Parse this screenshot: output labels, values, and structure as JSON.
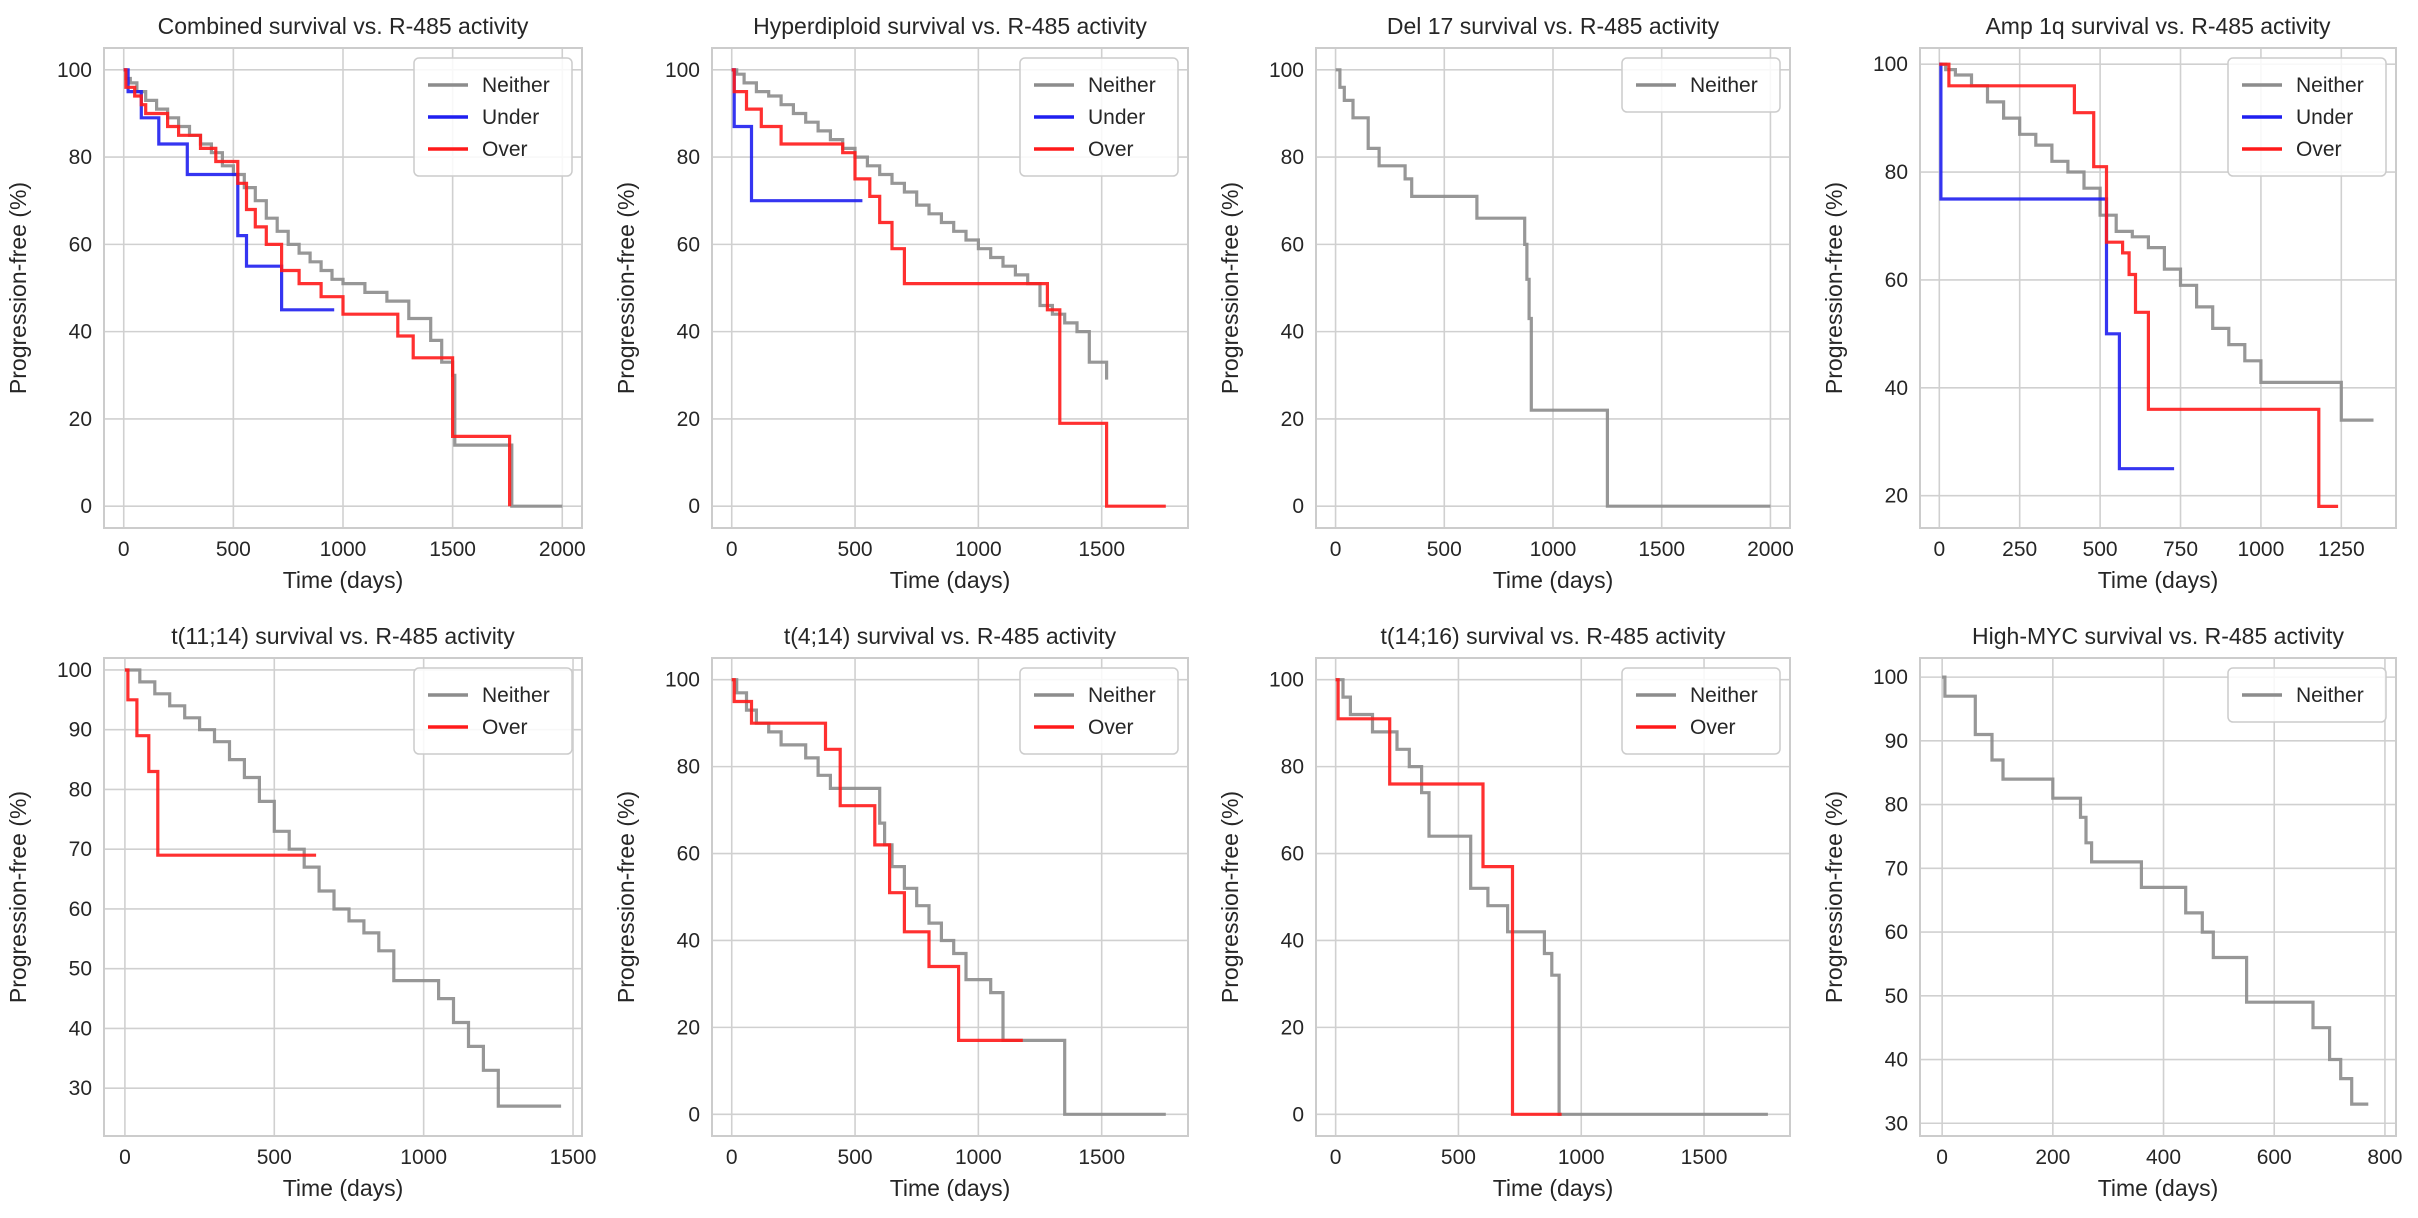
{
  "colors": {
    "Neither": "#8c8c8c",
    "Under": "#1f1ff0",
    "Over": "#ff1a1a",
    "grid": "#d0d0d0",
    "frame": "#cccccc"
  },
  "chart_data": [
    {
      "type": "line",
      "title": "Combined survival vs. R-485 activity",
      "xlabel": "Time (days)",
      "ylabel": "Progression-free (%)",
      "xlim": [
        -90,
        2090
      ],
      "ylim": [
        -5,
        105
      ],
      "xticks": [
        0,
        500,
        1000,
        1500,
        2000
      ],
      "yticks": [
        0,
        20,
        40,
        60,
        80,
        100
      ],
      "grid": true,
      "legend_placement": "top-right",
      "series": [
        {
          "name": "Neither",
          "x": [
            0,
            10,
            30,
            60,
            100,
            150,
            200,
            250,
            300,
            350,
            400,
            450,
            500,
            550,
            600,
            650,
            700,
            750,
            800,
            850,
            900,
            950,
            1000,
            1100,
            1200,
            1300,
            1400,
            1450,
            1500,
            1510,
            1770,
            2000
          ],
          "y": [
            100,
            98,
            97,
            95,
            93,
            91,
            89,
            87,
            85,
            83,
            81,
            78,
            76,
            73,
            70,
            66,
            63,
            60,
            58,
            56,
            54,
            52,
            51,
            49,
            47,
            43,
            38,
            33,
            30,
            14,
            0,
            0
          ]
        },
        {
          "name": "Under",
          "x": [
            0,
            20,
            80,
            160,
            290,
            520,
            560,
            720,
            960
          ],
          "y": [
            100,
            95,
            89,
            83,
            76,
            62,
            55,
            45,
            45
          ]
        },
        {
          "name": "Over",
          "x": [
            0,
            10,
            50,
            80,
            100,
            200,
            250,
            350,
            420,
            520,
            560,
            600,
            650,
            720,
            800,
            900,
            1000,
            1200,
            1250,
            1320,
            1500,
            1760
          ],
          "y": [
            100,
            96,
            94,
            92,
            90,
            87,
            85,
            82,
            79,
            74,
            68,
            64,
            60,
            54,
            51,
            48,
            44,
            44,
            39,
            34,
            16,
            0
          ]
        }
      ]
    },
    {
      "type": "line",
      "title": "Hyperdiploid survival vs. R-485 activity",
      "xlabel": "Time (days)",
      "ylabel": "Progression-free (%)",
      "xlim": [
        -80,
        1850
      ],
      "ylim": [
        -5,
        105
      ],
      "xticks": [
        0,
        500,
        1000,
        1500
      ],
      "yticks": [
        0,
        20,
        40,
        60,
        80,
        100
      ],
      "grid": true,
      "legend_placement": "top-right",
      "series": [
        {
          "name": "Neither",
          "x": [
            0,
            20,
            50,
            100,
            150,
            200,
            250,
            300,
            350,
            400,
            450,
            500,
            550,
            600,
            650,
            700,
            750,
            800,
            850,
            900,
            950,
            1000,
            1050,
            1100,
            1150,
            1200,
            1250,
            1300,
            1350,
            1400,
            1450,
            1520
          ],
          "y": [
            100,
            99,
            97,
            95,
            94,
            92,
            90,
            88,
            86,
            84,
            82,
            80,
            78,
            76,
            74,
            72,
            69,
            67,
            65,
            63,
            61,
            59,
            57,
            55,
            53,
            51,
            46,
            44,
            42,
            40,
            33,
            29
          ]
        },
        {
          "name": "Under",
          "x": [
            0,
            10,
            80,
            530
          ],
          "y": [
            100,
            87,
            70,
            70
          ]
        },
        {
          "name": "Over",
          "x": [
            0,
            10,
            60,
            120,
            200,
            450,
            500,
            560,
            600,
            650,
            700,
            1000,
            1200,
            1280,
            1330,
            1520,
            1760
          ],
          "y": [
            100,
            95,
            91,
            87,
            83,
            81,
            75,
            71,
            65,
            59,
            51,
            51,
            51,
            45,
            19,
            0,
            0
          ]
        }
      ]
    },
    {
      "type": "line",
      "title": "Del 17 survival vs. R-485 activity",
      "xlabel": "Time (days)",
      "ylabel": "Progression-free (%)",
      "xlim": [
        -90,
        2090
      ],
      "ylim": [
        -5,
        105
      ],
      "xticks": [
        0,
        500,
        1000,
        1500,
        2000
      ],
      "yticks": [
        0,
        20,
        40,
        60,
        80,
        100
      ],
      "grid": true,
      "legend_placement": "top-right",
      "series": [
        {
          "name": "Neither",
          "x": [
            0,
            20,
            40,
            80,
            150,
            200,
            320,
            350,
            550,
            650,
            870,
            880,
            890,
            900,
            1250,
            2000
          ],
          "y": [
            100,
            96,
            93,
            89,
            82,
            78,
            75,
            71,
            71,
            66,
            60,
            52,
            43,
            22,
            0,
            0
          ]
        }
      ]
    },
    {
      "type": "line",
      "title": "Amp 1q survival vs. R-485 activity",
      "xlabel": "Time (days)",
      "ylabel": "Progression-free (%)",
      "xlim": [
        -60,
        1420
      ],
      "ylim": [
        14,
        103
      ],
      "xticks": [
        0,
        250,
        500,
        750,
        1000,
        1250
      ],
      "yticks": [
        20,
        40,
        60,
        80,
        100
      ],
      "grid": true,
      "legend_placement": "top-right",
      "series": [
        {
          "name": "Neither",
          "x": [
            0,
            20,
            50,
            100,
            150,
            200,
            250,
            300,
            350,
            400,
            450,
            500,
            550,
            600,
            650,
            700,
            750,
            800,
            850,
            900,
            950,
            1000,
            1250,
            1350
          ],
          "y": [
            100,
            99,
            98,
            96,
            93,
            90,
            87,
            85,
            82,
            80,
            77,
            72,
            69,
            68,
            66,
            62,
            59,
            55,
            51,
            48,
            45,
            41,
            34,
            34
          ]
        },
        {
          "name": "Under",
          "x": [
            0,
            5,
            500,
            520,
            560,
            730
          ],
          "y": [
            100,
            75,
            75,
            50,
            25,
            25
          ]
        },
        {
          "name": "Over",
          "x": [
            0,
            30,
            360,
            420,
            480,
            520,
            570,
            590,
            610,
            650,
            1180,
            1240
          ],
          "y": [
            100,
            96,
            96,
            91,
            81,
            67,
            65,
            61,
            54,
            36,
            18,
            18
          ]
        }
      ]
    },
    {
      "type": "line",
      "title": "t(11;14) survival vs. R-485 activity",
      "xlabel": "Time (days)",
      "ylabel": "Progression-free (%)",
      "xlim": [
        -70,
        1530
      ],
      "ylim": [
        22,
        102
      ],
      "xticks": [
        0,
        500,
        1000,
        1500
      ],
      "yticks": [
        30,
        40,
        50,
        60,
        70,
        80,
        90,
        100
      ],
      "grid": true,
      "legend_placement": "top-right",
      "series": [
        {
          "name": "Neither",
          "x": [
            0,
            50,
            100,
            150,
            200,
            250,
            300,
            350,
            400,
            450,
            500,
            550,
            600,
            650,
            700,
            750,
            800,
            850,
            900,
            1050,
            1100,
            1150,
            1200,
            1250,
            1460
          ],
          "y": [
            100,
            98,
            96,
            94,
            92,
            90,
            88,
            85,
            82,
            78,
            73,
            70,
            67,
            63,
            60,
            58,
            56,
            53,
            48,
            45,
            41,
            37,
            33,
            27,
            27
          ]
        },
        {
          "name": "Over",
          "x": [
            0,
            10,
            40,
            80,
            110,
            640
          ],
          "y": [
            100,
            95,
            89,
            83,
            69,
            69
          ]
        }
      ]
    },
    {
      "type": "line",
      "title": "t(4;14) survival vs. R-485 activity",
      "xlabel": "Time (days)",
      "ylabel": "Progression-free (%)",
      "xlim": [
        -80,
        1850
      ],
      "ylim": [
        -5,
        105
      ],
      "xticks": [
        0,
        500,
        1000,
        1500
      ],
      "yticks": [
        0,
        20,
        40,
        60,
        80,
        100
      ],
      "grid": true,
      "legend_placement": "top-right",
      "series": [
        {
          "name": "Neither",
          "x": [
            0,
            20,
            60,
            100,
            150,
            200,
            300,
            350,
            400,
            450,
            600,
            620,
            650,
            700,
            750,
            800,
            850,
            900,
            950,
            1050,
            1100,
            1350,
            1760
          ],
          "y": [
            100,
            97,
            93,
            90,
            88,
            85,
            82,
            78,
            75,
            75,
            67,
            62,
            57,
            52,
            48,
            44,
            40,
            37,
            31,
            28,
            17,
            0,
            0
          ]
        },
        {
          "name": "Over",
          "x": [
            0,
            10,
            80,
            320,
            380,
            440,
            580,
            640,
            700,
            800,
            920,
            1180
          ],
          "y": [
            100,
            95,
            90,
            90,
            84,
            71,
            62,
            51,
            42,
            34,
            17,
            17
          ]
        }
      ]
    },
    {
      "type": "line",
      "title": "t(14;16) survival vs. R-485 activity",
      "xlabel": "Time (days)",
      "ylabel": "Progression-free (%)",
      "xlim": [
        -80,
        1850
      ],
      "ylim": [
        -5,
        105
      ],
      "xticks": [
        0,
        500,
        1000,
        1500
      ],
      "yticks": [
        0,
        20,
        40,
        60,
        80,
        100
      ],
      "grid": true,
      "legend_placement": "top-right",
      "series": [
        {
          "name": "Neither",
          "x": [
            0,
            30,
            60,
            150,
            250,
            300,
            350,
            380,
            550,
            620,
            700,
            850,
            880,
            900,
            910,
            1760
          ],
          "y": [
            100,
            96,
            92,
            88,
            84,
            80,
            74,
            64,
            52,
            48,
            42,
            37,
            32,
            32,
            0,
            0
          ]
        },
        {
          "name": "Over",
          "x": [
            0,
            10,
            210,
            220,
            600,
            720,
            920
          ],
          "y": [
            100,
            91,
            91,
            76,
            57,
            0,
            0
          ]
        }
      ]
    },
    {
      "type": "line",
      "title": "High-MYC survival vs. R-485 activity",
      "xlabel": "Time (days)",
      "ylabel": "Progression-free (%)",
      "xlim": [
        -40,
        820
      ],
      "ylim": [
        28,
        103
      ],
      "xticks": [
        0,
        200,
        400,
        600,
        800
      ],
      "yticks": [
        30,
        40,
        50,
        60,
        70,
        80,
        90,
        100
      ],
      "grid": true,
      "legend_placement": "top-right",
      "series": [
        {
          "name": "Neither",
          "x": [
            0,
            5,
            60,
            90,
            110,
            140,
            200,
            250,
            260,
            270,
            360,
            440,
            470,
            490,
            550,
            670,
            700,
            720,
            740,
            770
          ],
          "y": [
            100,
            97,
            91,
            87,
            84,
            84,
            81,
            78,
            74,
            71,
            67,
            63,
            60,
            56,
            49,
            45,
            40,
            37,
            33,
            33
          ]
        }
      ]
    }
  ]
}
